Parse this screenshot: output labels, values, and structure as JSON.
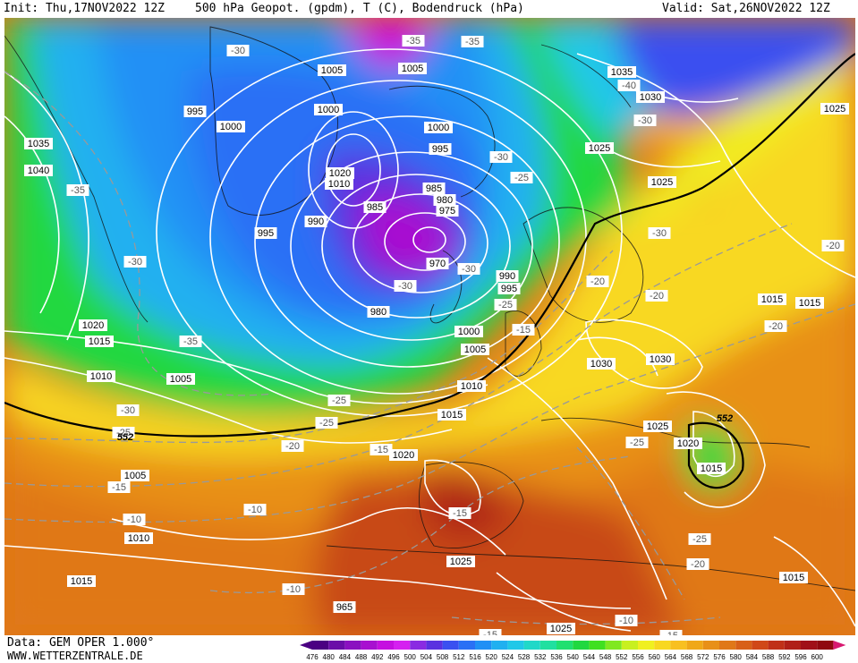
{
  "header": {
    "init": "Init: Thu,17NOV2022 12Z",
    "title": "500 hPa Geopot. (gpdm), T (C), Bodendruck (hPa)",
    "valid": "Valid: Sat,26NOV2022 12Z"
  },
  "footer": {
    "data_source": "Data: GEM OPER 1.000°",
    "website": "WWW.WETTERZENTRALE.DE"
  },
  "map": {
    "geopotential_labels": [
      "552",
      "552"
    ],
    "isobar_labels": [
      "1040",
      "1035",
      "1035",
      "1030",
      "1030",
      "1030",
      "1025",
      "1025",
      "1025",
      "1025",
      "1025",
      "1025",
      "1020",
      "1020",
      "1020",
      "1020",
      "1015",
      "1015",
      "1015",
      "1015",
      "1015",
      "1015",
      "1015",
      "1010",
      "1010",
      "1010",
      "1010",
      "1005",
      "1005",
      "1005",
      "1005",
      "1005",
      "1000",
      "1000",
      "1000",
      "1000",
      "995",
      "995",
      "995",
      "995",
      "990",
      "990",
      "985",
      "985",
      "980",
      "980",
      "975",
      "970",
      "965"
    ],
    "temperature_labels": [
      "-40",
      "-35",
      "-35",
      "-35",
      "-35",
      "-30",
      "-30",
      "-30",
      "-30",
      "-30",
      "-30",
      "-30",
      "-30",
      "-25",
      "-25",
      "-25",
      "-25",
      "-25",
      "-25",
      "-25",
      "-20",
      "-20",
      "-20",
      "-20",
      "-20",
      "-20",
      "-15",
      "-15",
      "-15",
      "-15",
      "-15",
      "-15",
      "-10",
      "-10",
      "-10",
      "-10"
    ]
  },
  "legend": {
    "scale_values": [
      "476",
      "480",
      "484",
      "488",
      "492",
      "496",
      "500",
      "504",
      "508",
      "512",
      "516",
      "520",
      "524",
      "528",
      "532",
      "536",
      "540",
      "544",
      "548",
      "552",
      "556",
      "560",
      "564",
      "568",
      "572",
      "576",
      "580",
      "584",
      "588",
      "592",
      "596",
      "600"
    ],
    "colors": [
      "#4b0082",
      "#6a0ca8",
      "#8a10c0",
      "#a810d0",
      "#c510e0",
      "#d520f0",
      "#8a2be2",
      "#5a32e0",
      "#3a50f0",
      "#2a70f5",
      "#2090f5",
      "#20b0f0",
      "#20c8e8",
      "#20d8c8",
      "#20e0a0",
      "#20e070",
      "#20d840",
      "#40e020",
      "#80e820",
      "#c8f020",
      "#f0f020",
      "#f8d820",
      "#f8c020",
      "#f0a818",
      "#e89018",
      "#e07818",
      "#d86018",
      "#d04818",
      "#c03018",
      "#b02018",
      "#a01018",
      "#900810"
    ]
  }
}
